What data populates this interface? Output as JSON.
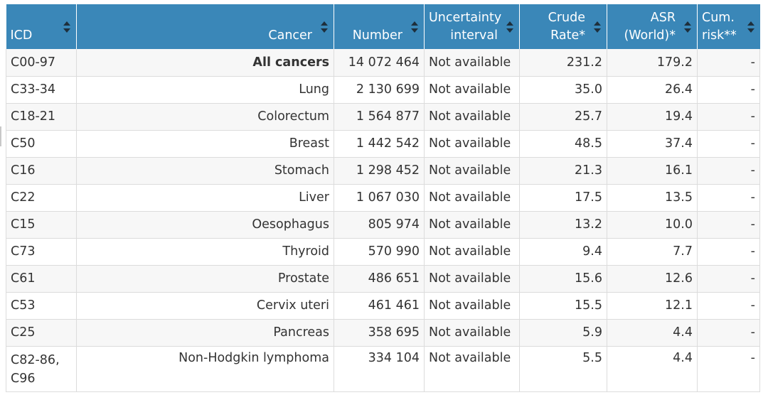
{
  "headers": {
    "icd": "ICD",
    "cancer": "Cancer",
    "number": "Number",
    "uncertainty_line1": "Uncertainty",
    "uncertainty_line2": "interval",
    "crude_line1": "Crude",
    "crude_line2": "Rate*",
    "asr_line1": "ASR",
    "asr_line2": "(World)*",
    "cum_line1": "Cum.",
    "cum_line2": "risk**"
  },
  "rows": [
    {
      "icd": "C00-97",
      "cancer": "All cancers",
      "number": "14 072 464",
      "uncertainty": "Not available",
      "crude": "231.2",
      "asr": "179.2",
      "cum": "-"
    },
    {
      "icd": "C33-34",
      "cancer": "Lung",
      "number": "2 130 699",
      "uncertainty": "Not available",
      "crude": "35.0",
      "asr": "26.4",
      "cum": "-"
    },
    {
      "icd": "C18-21",
      "cancer": "Colorectum",
      "number": "1 564 877",
      "uncertainty": "Not available",
      "crude": "25.7",
      "asr": "19.4",
      "cum": "-"
    },
    {
      "icd": "C50",
      "cancer": "Breast",
      "number": "1 442 542",
      "uncertainty": "Not available",
      "crude": "48.5",
      "asr": "37.4",
      "cum": "-"
    },
    {
      "icd": "C16",
      "cancer": "Stomach",
      "number": "1 298 452",
      "uncertainty": "Not available",
      "crude": "21.3",
      "asr": "16.1",
      "cum": "-"
    },
    {
      "icd": "C22",
      "cancer": "Liver",
      "number": "1 067 030",
      "uncertainty": "Not available",
      "crude": "17.5",
      "asr": "13.5",
      "cum": "-"
    },
    {
      "icd": "C15",
      "cancer": "Oesophagus",
      "number": "805 974",
      "uncertainty": "Not available",
      "crude": "13.2",
      "asr": "10.0",
      "cum": "-"
    },
    {
      "icd": "C73",
      "cancer": "Thyroid",
      "number": "570 990",
      "uncertainty": "Not available",
      "crude": "9.4",
      "asr": "7.7",
      "cum": "-"
    },
    {
      "icd": "C61",
      "cancer": "Prostate",
      "number": "486 651",
      "uncertainty": "Not available",
      "crude": "15.6",
      "asr": "12.6",
      "cum": "-"
    },
    {
      "icd": "C53",
      "cancer": "Cervix uteri",
      "number": "461 461",
      "uncertainty": "Not available",
      "crude": "15.5",
      "asr": "12.1",
      "cum": "-"
    },
    {
      "icd": "C25",
      "cancer": "Pancreas",
      "number": "358 695",
      "uncertainty": "Not available",
      "crude": "5.9",
      "asr": "4.4",
      "cum": "-"
    },
    {
      "icd": "C82-86, C96",
      "cancer": "Non-Hodgkin lymphoma",
      "number": "334 104",
      "uncertainty": "Not available",
      "crude": "5.5",
      "asr": "4.4",
      "cum": "-"
    }
  ],
  "icons": {
    "sort": "sort-icon"
  },
  "colors": {
    "header_bg": "#3a87b8",
    "header_text": "#ffffff",
    "row_alt": "#f7f7f7",
    "border": "#dcdcdc"
  }
}
